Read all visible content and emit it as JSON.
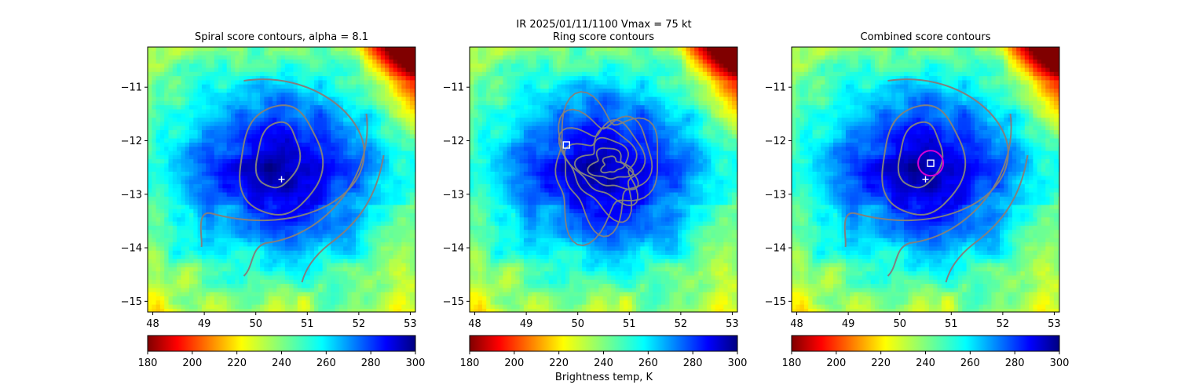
{
  "figure": {
    "suptitle_line1": "IR  2025/01/11/1100    Vmax = 75 kt",
    "colorbar_label": "Brightness temp, K"
  },
  "chart_data": [
    {
      "type": "heatmap",
      "title": "Spiral score contours, alpha =  8.1",
      "x_ticks": [
        "48",
        "49",
        "50",
        "51",
        "52",
        "53"
      ],
      "y_ticks": [
        "−11",
        "−12",
        "−13",
        "−14",
        "−15"
      ],
      "xlim": [
        47.9,
        53.1
      ],
      "ylim": [
        -15.2,
        -10.25
      ],
      "colorbar_ticks": [
        "180",
        "200",
        "220",
        "240",
        "260",
        "280",
        "300"
      ],
      "colorbar_range": [
        180,
        300
      ],
      "colormap": "jet",
      "storm_center": {
        "lon": 50.5,
        "lat": -12.6,
        "min_temp": 185
      },
      "overlay": "spiral",
      "markers": [
        {
          "symbol": "plus",
          "lon": 50.5,
          "lat": -12.72,
          "color": "#ffffff"
        }
      ]
    },
    {
      "type": "heatmap",
      "title": "Ring score contours",
      "x_ticks": [
        "48",
        "49",
        "50",
        "51",
        "52",
        "53"
      ],
      "y_ticks": [
        "−11",
        "−12",
        "−13",
        "−14",
        "−15"
      ],
      "xlim": [
        47.9,
        53.1
      ],
      "ylim": [
        -15.2,
        -10.25
      ],
      "colorbar_ticks": [
        "180",
        "200",
        "220",
        "240",
        "260",
        "280",
        "300"
      ],
      "colorbar_range": [
        180,
        300
      ],
      "colormap": "jet",
      "storm_center": {
        "lon": 50.5,
        "lat": -12.6,
        "min_temp": 185
      },
      "overlay": "ring",
      "markers": [
        {
          "symbol": "square",
          "lon": 49.78,
          "lat": -12.08,
          "color": "#ffffff"
        }
      ]
    },
    {
      "type": "heatmap",
      "title": "Combined score contours",
      "x_ticks": [
        "48",
        "49",
        "50",
        "51",
        "52",
        "53"
      ],
      "y_ticks": [
        "−11",
        "−12",
        "−13",
        "−14",
        "−15"
      ],
      "xlim": [
        47.9,
        53.1
      ],
      "ylim": [
        -15.2,
        -10.25
      ],
      "colorbar_ticks": [
        "180",
        "200",
        "220",
        "240",
        "260",
        "280",
        "300"
      ],
      "colorbar_range": [
        180,
        300
      ],
      "colormap": "jet",
      "storm_center": {
        "lon": 50.5,
        "lat": -12.6,
        "min_temp": 185
      },
      "overlay": "combined",
      "markers": [
        {
          "symbol": "plus",
          "lon": 50.5,
          "lat": -12.72,
          "color": "#ffffff"
        },
        {
          "symbol": "square",
          "lon": 50.6,
          "lat": -12.42,
          "color": "#ffffff"
        },
        {
          "symbol": "circle",
          "lon": 50.6,
          "lat": -12.42,
          "color": "#d400d4"
        }
      ]
    }
  ]
}
